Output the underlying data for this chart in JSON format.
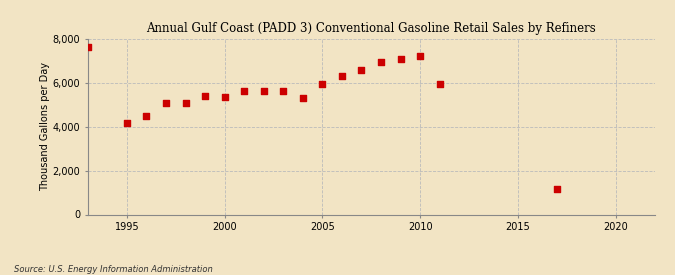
{
  "title": "Annual Gulf Coast (PADD 3) Conventional Gasoline Retail Sales by Refiners",
  "ylabel": "Thousand Gallons per Day",
  "source": "Source: U.S. Energy Information Administration",
  "background_color": "#f2e4c4",
  "plot_background_color": "#f2e4c4",
  "marker_color": "#cc0000",
  "marker_size": 18,
  "xlim": [
    1993,
    2022
  ],
  "ylim": [
    0,
    8000
  ],
  "yticks": [
    0,
    2000,
    4000,
    6000,
    8000
  ],
  "xticks": [
    1995,
    2000,
    2005,
    2010,
    2015,
    2020
  ],
  "years": [
    1993,
    1995,
    1996,
    1997,
    1998,
    1999,
    2000,
    2001,
    2002,
    2003,
    2004,
    2005,
    2006,
    2007,
    2008,
    2009,
    2010,
    2011,
    2017
  ],
  "values": [
    7600,
    4150,
    4500,
    5050,
    5050,
    5380,
    5330,
    5600,
    5600,
    5600,
    5300,
    5950,
    6300,
    6550,
    6950,
    7050,
    7200,
    5920,
    1150
  ]
}
